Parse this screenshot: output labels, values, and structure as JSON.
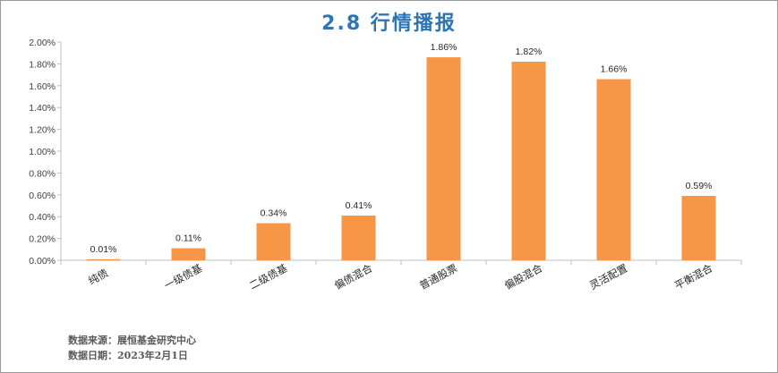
{
  "chart_data": {
    "type": "bar",
    "title": "2.8 行情播报",
    "categories": [
      "纯债",
      "一级债基",
      "二级债基",
      "偏债混合",
      "普通股票",
      "偏股混合",
      "灵活配置",
      "平衡混合"
    ],
    "values": [
      0.01,
      0.11,
      0.34,
      0.41,
      1.86,
      1.82,
      1.66,
      0.59
    ],
    "data_labels": [
      "0.01%",
      "0.11%",
      "0.34%",
      "0.41%",
      "1.86%",
      "1.82%",
      "1.66%",
      "0.59%"
    ],
    "y_ticks": [
      "0.00%",
      "0.20%",
      "0.40%",
      "0.60%",
      "0.80%",
      "1.00%",
      "1.20%",
      "1.40%",
      "1.60%",
      "1.80%",
      "2.00%"
    ],
    "ylim": [
      0,
      2.0
    ],
    "grid": false,
    "legend": "none",
    "bar_color": "#f79646"
  },
  "notes": {
    "source": "数据来源：展恒基金研究中心",
    "date": "数据日期：2023年2月1日"
  },
  "colors": {
    "title": "#2e75b6",
    "bar": "#f79646",
    "axis": "#bfbfbf"
  }
}
